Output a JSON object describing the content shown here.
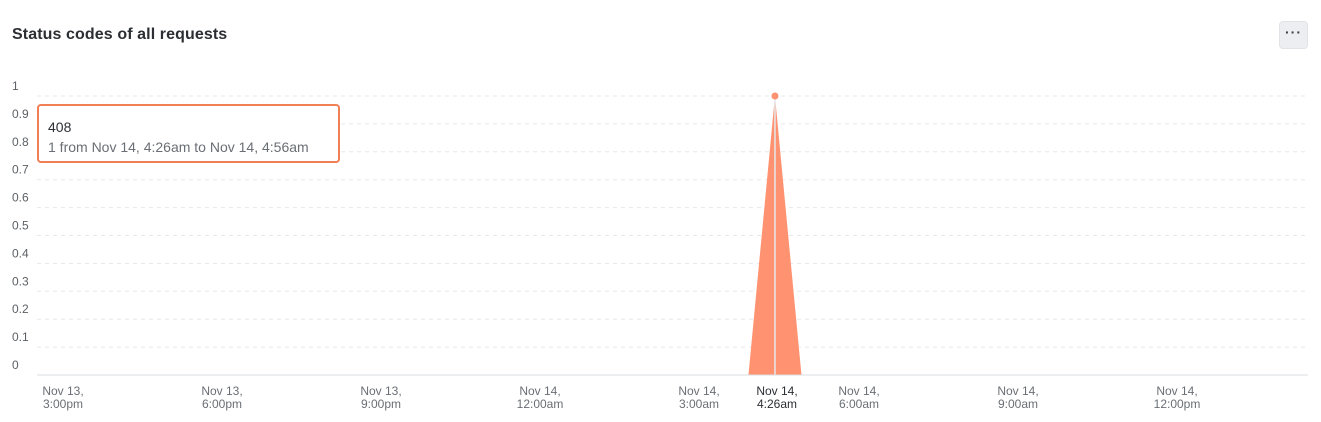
{
  "header": {
    "title": "Status codes of all requests",
    "menu_label": "···"
  },
  "tooltip": {
    "code": "408",
    "description": "1 from Nov 14, 4:26am to Nov 14, 4:56am"
  },
  "colors": {
    "series": "#ff9270",
    "tooltip_border": "#f07f55",
    "grid": "#e6e8eb",
    "axis": "#d9dce0"
  },
  "chart_data": {
    "type": "area",
    "title": "Status codes of all requests",
    "xlabel": "",
    "ylabel": "",
    "ylim": [
      0,
      1
    ],
    "grid": true,
    "yticks": [
      "0",
      "0.1",
      "0.2",
      "0.3",
      "0.4",
      "0.5",
      "0.6",
      "0.7",
      "0.8",
      "0.9",
      "1"
    ],
    "xticks": [
      {
        "line1": "Nov 13,",
        "line2": "3:00pm",
        "active": false
      },
      {
        "line1": "Nov 13,",
        "line2": "6:00pm",
        "active": false
      },
      {
        "line1": "Nov 13,",
        "line2": "9:00pm",
        "active": false
      },
      {
        "line1": "Nov 14,",
        "line2": "12:00am",
        "active": false
      },
      {
        "line1": "Nov 14,",
        "line2": "3:00am",
        "active": false
      },
      {
        "line1": "Nov 14,",
        "line2": "4:26am",
        "active": true
      },
      {
        "line1": "Nov 14,",
        "line2": "6:00am",
        "active": false
      },
      {
        "line1": "Nov 14,",
        "line2": "9:00am",
        "active": false
      },
      {
        "line1": "Nov 14,",
        "line2": "12:00pm",
        "active": false
      }
    ],
    "series": [
      {
        "name": "408",
        "x": [
          "Nov 14, 3:56am",
          "Nov 14, 4:26am",
          "Nov 14, 4:56am"
        ],
        "values": [
          0,
          1,
          0
        ]
      }
    ]
  }
}
